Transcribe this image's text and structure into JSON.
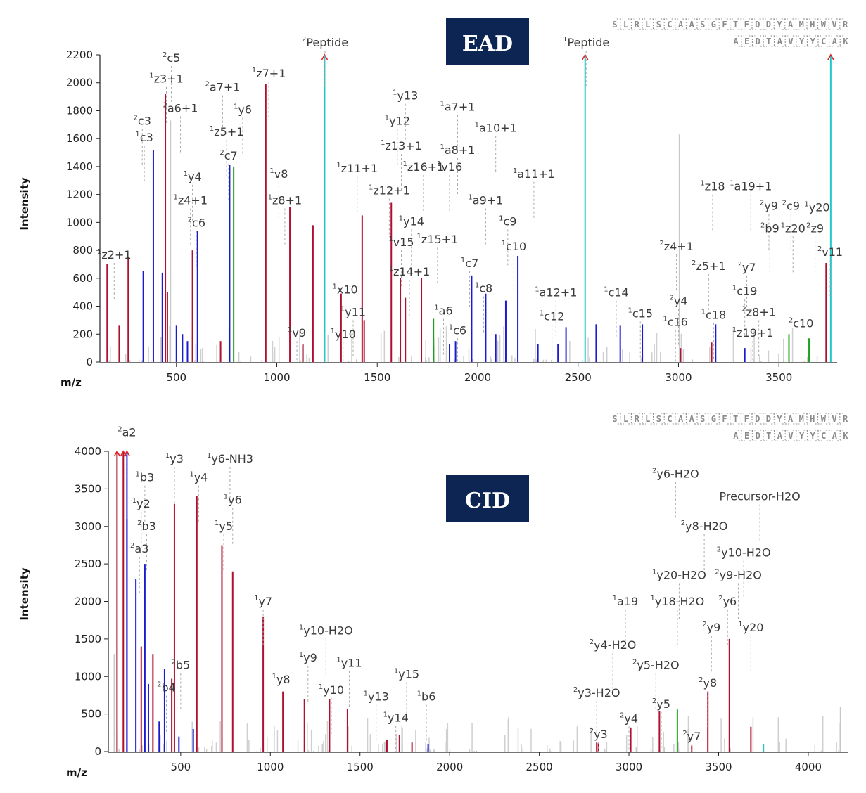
{
  "chart_data": [
    {
      "type": "bar",
      "badge": "EAD",
      "xlabel": "m/z",
      "ylabel": "Intensity",
      "xlim": [
        140,
        3790
      ],
      "ylim": [
        0,
        2200
      ],
      "xticks": [
        500,
        1000,
        1500,
        2000,
        2500,
        3000,
        3500
      ],
      "yticks": [
        0,
        200,
        400,
        600,
        800,
        1000,
        1200,
        1400,
        1600,
        1800,
        2000,
        2200
      ],
      "sequence": {
        "peptide1": "SLRLSCAASGFTFDDYAMHWVR",
        "peptide2": "AEDTAVYYCAK",
        "highlight": "C"
      },
      "colors": {
        "red": "#b01030",
        "blue": "#1a1ad0",
        "green": "#20a020",
        "cyan": "#20c8c8",
        "gray": "#c8c8c8",
        "arrow": "#e02020"
      },
      "peaks": [
        {
          "mz": 155,
          "i": 700,
          "c": "red"
        },
        {
          "mz": 215,
          "i": 260,
          "c": "red"
        },
        {
          "mz": 260,
          "i": 750,
          "c": "red"
        },
        {
          "mz": 335,
          "i": 650,
          "c": "blue"
        },
        {
          "mz": 385,
          "i": 1520,
          "c": "blue"
        },
        {
          "mz": 430,
          "i": 640,
          "c": "blue"
        },
        {
          "mz": 445,
          "i": 1920,
          "c": "red"
        },
        {
          "mz": 455,
          "i": 500,
          "c": "red"
        },
        {
          "mz": 470,
          "i": 1730,
          "c": "gray"
        },
        {
          "mz": 500,
          "i": 260,
          "c": "blue"
        },
        {
          "mz": 530,
          "i": 200,
          "c": "blue"
        },
        {
          "mz": 555,
          "i": 150,
          "c": "blue"
        },
        {
          "mz": 580,
          "i": 800,
          "c": "red"
        },
        {
          "mz": 605,
          "i": 940,
          "c": "blue"
        },
        {
          "mz": 720,
          "i": 150,
          "c": "red"
        },
        {
          "mz": 765,
          "i": 1410,
          "c": "blue"
        },
        {
          "mz": 785,
          "i": 1400,
          "c": "green"
        },
        {
          "mz": 945,
          "i": 1990,
          "c": "red"
        },
        {
          "mz": 1065,
          "i": 1110,
          "c": "red"
        },
        {
          "mz": 1130,
          "i": 130,
          "c": "red"
        },
        {
          "mz": 1180,
          "i": 980,
          "c": "red"
        },
        {
          "mz": 1238,
          "i": 2200,
          "c": "cyan",
          "arrow": true
        },
        {
          "mz": 1320,
          "i": 490,
          "c": "red"
        },
        {
          "mz": 1425,
          "i": 1050,
          "c": "red"
        },
        {
          "mz": 1435,
          "i": 300,
          "c": "red"
        },
        {
          "mz": 1570,
          "i": 1140,
          "c": "red"
        },
        {
          "mz": 1615,
          "i": 600,
          "c": "red"
        },
        {
          "mz": 1640,
          "i": 460,
          "c": "red"
        },
        {
          "mz": 1720,
          "i": 600,
          "c": "red"
        },
        {
          "mz": 1780,
          "i": 310,
          "c": "green"
        },
        {
          "mz": 1860,
          "i": 130,
          "c": "blue"
        },
        {
          "mz": 1890,
          "i": 150,
          "c": "blue"
        },
        {
          "mz": 1970,
          "i": 620,
          "c": "blue"
        },
        {
          "mz": 2040,
          "i": 490,
          "c": "blue"
        },
        {
          "mz": 2090,
          "i": 200,
          "c": "blue"
        },
        {
          "mz": 2140,
          "i": 440,
          "c": "blue"
        },
        {
          "mz": 2200,
          "i": 760,
          "c": "blue"
        },
        {
          "mz": 2300,
          "i": 130,
          "c": "blue"
        },
        {
          "mz": 2400,
          "i": 130,
          "c": "blue"
        },
        {
          "mz": 2440,
          "i": 250,
          "c": "blue"
        },
        {
          "mz": 2535,
          "i": 2200,
          "c": "cyan",
          "arrow": true
        },
        {
          "mz": 2590,
          "i": 270,
          "c": "blue"
        },
        {
          "mz": 2710,
          "i": 260,
          "c": "blue"
        },
        {
          "mz": 2820,
          "i": 270,
          "c": "blue"
        },
        {
          "mz": 3005,
          "i": 1630,
          "c": "gray"
        },
        {
          "mz": 3010,
          "i": 100,
          "c": "red"
        },
        {
          "mz": 3165,
          "i": 140,
          "c": "red"
        },
        {
          "mz": 3185,
          "i": 270,
          "c": "blue"
        },
        {
          "mz": 3330,
          "i": 100,
          "c": "blue"
        },
        {
          "mz": 3550,
          "i": 200,
          "c": "green"
        },
        {
          "mz": 3650,
          "i": 170,
          "c": "green"
        },
        {
          "mz": 3735,
          "i": 710,
          "c": "red"
        },
        {
          "mz": 3758,
          "i": 2200,
          "c": "cyan",
          "arrow": true
        }
      ],
      "labels": [
        {
          "mz": 190,
          "i": 740,
          "t": "1z2+1"
        },
        {
          "mz": 340,
          "i": 1580,
          "t": "1c3"
        },
        {
          "mz": 330,
          "i": 1700,
          "t": "2c3"
        },
        {
          "mz": 450,
          "i": 2000,
          "t": "1z3+1"
        },
        {
          "mz": 475,
          "i": 2150,
          "t": "2c5"
        },
        {
          "mz": 520,
          "i": 1790,
          "t": "2a6+1"
        },
        {
          "mz": 580,
          "i": 1300,
          "t": "1y4"
        },
        {
          "mz": 570,
          "i": 1130,
          "t": "1z4+1"
        },
        {
          "mz": 600,
          "i": 970,
          "t": "2c6"
        },
        {
          "mz": 730,
          "i": 1940,
          "t": "2a7+1"
        },
        {
          "mz": 830,
          "i": 1780,
          "t": "1y6"
        },
        {
          "mz": 750,
          "i": 1620,
          "t": "1z5+1"
        },
        {
          "mz": 760,
          "i": 1450,
          "t": "2c7"
        },
        {
          "mz": 960,
          "i": 2040,
          "t": "1z7+1"
        },
        {
          "mz": 1010,
          "i": 1320,
          "t": "1v8"
        },
        {
          "mz": 1040,
          "i": 1130,
          "t": "1z8+1"
        },
        {
          "mz": 1100,
          "i": 180,
          "t": "1v9"
        },
        {
          "mz": 1340,
          "i": 490,
          "t": "1x10"
        },
        {
          "mz": 1380,
          "i": 330,
          "t": "1y11"
        },
        {
          "mz": 1330,
          "i": 170,
          "t": "1y10"
        },
        {
          "mz": 1400,
          "i": 1360,
          "t": "1z11+1"
        },
        {
          "mz": 1560,
          "i": 1200,
          "t": "1z12+1"
        },
        {
          "mz": 1600,
          "i": 1700,
          "t": "1y12"
        },
        {
          "mz": 1640,
          "i": 1880,
          "t": "1y13"
        },
        {
          "mz": 1620,
          "i": 1520,
          "t": "1z13+1"
        },
        {
          "mz": 1730,
          "i": 1370,
          "t": "1z16+1"
        },
        {
          "mz": 1860,
          "i": 1370,
          "t": "1v16"
        },
        {
          "mz": 1670,
          "i": 980,
          "t": "1y14"
        },
        {
          "mz": 1620,
          "i": 830,
          "t": "1v15"
        },
        {
          "mz": 1800,
          "i": 850,
          "t": "1z15+1"
        },
        {
          "mz": 1660,
          "i": 620,
          "t": "1z14+1"
        },
        {
          "mz": 1900,
          "i": 1800,
          "t": "1a7+1"
        },
        {
          "mz": 1900,
          "i": 1490,
          "t": "1a8+1"
        },
        {
          "mz": 2090,
          "i": 1650,
          "t": "1a10+1"
        },
        {
          "mz": 2040,
          "i": 1130,
          "t": "1a9+1"
        },
        {
          "mz": 2150,
          "i": 980,
          "t": "1c9"
        },
        {
          "mz": 2180,
          "i": 800,
          "t": "1c10"
        },
        {
          "mz": 1960,
          "i": 680,
          "t": "1c7"
        },
        {
          "mz": 2030,
          "i": 500,
          "t": "1c8"
        },
        {
          "mz": 1830,
          "i": 340,
          "t": "1a6"
        },
        {
          "mz": 1900,
          "i": 200,
          "t": "1c6"
        },
        {
          "mz": 2280,
          "i": 1320,
          "t": "1a11+1"
        },
        {
          "mz": 2390,
          "i": 470,
          "t": "1a12+1"
        },
        {
          "mz": 2370,
          "i": 300,
          "t": "1c12"
        },
        {
          "mz": 2690,
          "i": 470,
          "t": "1c14"
        },
        {
          "mz": 2810,
          "i": 320,
          "t": "1c15"
        },
        {
          "mz": 2990,
          "i": 800,
          "t": "2z4+1"
        },
        {
          "mz": 3000,
          "i": 410,
          "t": "2y4"
        },
        {
          "mz": 2985,
          "i": 260,
          "t": "1c16"
        },
        {
          "mz": 3170,
          "i": 1230,
          "t": "1z18"
        },
        {
          "mz": 3150,
          "i": 660,
          "t": "2z5+1"
        },
        {
          "mz": 3175,
          "i": 310,
          "t": "1c18"
        },
        {
          "mz": 3360,
          "i": 1230,
          "t": "1a19+1"
        },
        {
          "mz": 3340,
          "i": 650,
          "t": "2y7"
        },
        {
          "mz": 3330,
          "i": 480,
          "t": "1c19"
        },
        {
          "mz": 3400,
          "i": 330,
          "t": "2z8+1"
        },
        {
          "mz": 3370,
          "i": 180,
          "t": "1z19+1"
        },
        {
          "mz": 3450,
          "i": 1090,
          "t": "2y9"
        },
        {
          "mz": 3455,
          "i": 930,
          "t": "2b9"
        },
        {
          "mz": 3560,
          "i": 1090,
          "t": "2c9"
        },
        {
          "mz": 3570,
          "i": 930,
          "t": "1z20"
        },
        {
          "mz": 3690,
          "i": 1080,
          "t": "1y20"
        },
        {
          "mz": 3680,
          "i": 930,
          "t": "2z9"
        },
        {
          "mz": 3755,
          "i": 760,
          "t": "2v11"
        },
        {
          "mz": 3610,
          "i": 250,
          "t": "2c10"
        },
        {
          "mz": 1240,
          "i": 2260,
          "t": "2Peptide"
        },
        {
          "mz": 2540,
          "i": 2260,
          "t": "1Peptide"
        }
      ]
    },
    {
      "type": "bar",
      "badge": "CID",
      "xlabel": "m/z",
      "ylabel": "Intensity",
      "xlim": [
        120,
        4220
      ],
      "ylim": [
        0,
        4000
      ],
      "xticks": [
        500,
        1000,
        1500,
        2000,
        2500,
        3000,
        3500,
        4000
      ],
      "yticks": [
        0,
        500,
        1000,
        1500,
        2000,
        2500,
        3000,
        3500,
        4000
      ],
      "sequence": {
        "peptide1": "SLRLSCAASGFTFDDYAMHWVR",
        "peptide2": "AEDTAVYYCAK",
        "highlight": "C"
      },
      "colors": {
        "red": "#b01030",
        "blue": "#1a1ad0",
        "green": "#20a020",
        "cyan": "#20c8c8",
        "gray": "#c8c8c8",
        "arrow": "#e02020"
      },
      "peaks": [
        {
          "mz": 130,
          "i": 1300,
          "c": "gray"
        },
        {
          "mz": 145,
          "i": 4000,
          "c": "red",
          "arrow": true
        },
        {
          "mz": 180,
          "i": 4000,
          "c": "red",
          "arrow": true
        },
        {
          "mz": 200,
          "i": 4000,
          "c": "blue",
          "arrow": true
        },
        {
          "mz": 200,
          "i": 3100,
          "c": "blue"
        },
        {
          "mz": 250,
          "i": 2300,
          "c": "blue"
        },
        {
          "mz": 280,
          "i": 1400,
          "c": "red"
        },
        {
          "mz": 300,
          "i": 2500,
          "c": "blue"
        },
        {
          "mz": 320,
          "i": 900,
          "c": "blue"
        },
        {
          "mz": 345,
          "i": 1300,
          "c": "red"
        },
        {
          "mz": 380,
          "i": 400,
          "c": "blue"
        },
        {
          "mz": 410,
          "i": 1100,
          "c": "blue"
        },
        {
          "mz": 450,
          "i": 970,
          "c": "red"
        },
        {
          "mz": 465,
          "i": 3300,
          "c": "red"
        },
        {
          "mz": 490,
          "i": 200,
          "c": "blue"
        },
        {
          "mz": 590,
          "i": 3400,
          "c": "red"
        },
        {
          "mz": 570,
          "i": 300,
          "c": "blue"
        },
        {
          "mz": 730,
          "i": 2750,
          "c": "red"
        },
        {
          "mz": 790,
          "i": 2400,
          "c": "red"
        },
        {
          "mz": 960,
          "i": 1800,
          "c": "red"
        },
        {
          "mz": 1070,
          "i": 800,
          "c": "red"
        },
        {
          "mz": 1190,
          "i": 700,
          "c": "red"
        },
        {
          "mz": 1330,
          "i": 700,
          "c": "red"
        },
        {
          "mz": 1430,
          "i": 570,
          "c": "red"
        },
        {
          "mz": 1650,
          "i": 160,
          "c": "red"
        },
        {
          "mz": 1720,
          "i": 220,
          "c": "red"
        },
        {
          "mz": 1790,
          "i": 120,
          "c": "red"
        },
        {
          "mz": 1880,
          "i": 100,
          "c": "blue"
        },
        {
          "mz": 2820,
          "i": 120,
          "c": "red"
        },
        {
          "mz": 2830,
          "i": 110,
          "c": "red"
        },
        {
          "mz": 3010,
          "i": 320,
          "c": "red"
        },
        {
          "mz": 3170,
          "i": 540,
          "c": "red"
        },
        {
          "mz": 3270,
          "i": 560,
          "c": "green"
        },
        {
          "mz": 3350,
          "i": 80,
          "c": "red"
        },
        {
          "mz": 3440,
          "i": 800,
          "c": "red"
        },
        {
          "mz": 3560,
          "i": 1500,
          "c": "red"
        },
        {
          "mz": 3680,
          "i": 330,
          "c": "red"
        },
        {
          "mz": 3750,
          "i": 100,
          "c": "cyan"
        },
        {
          "mz": 4180,
          "i": 600,
          "c": "gray"
        }
      ],
      "labels": [
        {
          "mz": 200,
          "i": 4200,
          "t": "2a2"
        },
        {
          "mz": 300,
          "i": 3600,
          "t": "1b3"
        },
        {
          "mz": 280,
          "i": 3250,
          "t": "1y2"
        },
        {
          "mz": 310,
          "i": 2950,
          "t": "2b3"
        },
        {
          "mz": 270,
          "i": 2650,
          "t": "2a3"
        },
        {
          "mz": 465,
          "i": 3850,
          "t": "1y3"
        },
        {
          "mz": 600,
          "i": 3600,
          "t": "1y4"
        },
        {
          "mz": 775,
          "i": 3850,
          "t": "1y6-NH3"
        },
        {
          "mz": 790,
          "i": 3300,
          "t": "1y6"
        },
        {
          "mz": 740,
          "i": 2950,
          "t": "1y5"
        },
        {
          "mz": 500,
          "i": 1100,
          "t": "2b5"
        },
        {
          "mz": 420,
          "i": 800,
          "t": "2b4"
        },
        {
          "mz": 960,
          "i": 1950,
          "t": "1y7"
        },
        {
          "mz": 1310,
          "i": 1560,
          "t": "1y10-H2O"
        },
        {
          "mz": 1210,
          "i": 1200,
          "t": "1y9"
        },
        {
          "mz": 1440,
          "i": 1130,
          "t": "1y11"
        },
        {
          "mz": 1060,
          "i": 910,
          "t": "1y8"
        },
        {
          "mz": 1340,
          "i": 770,
          "t": "1y10"
        },
        {
          "mz": 1760,
          "i": 980,
          "t": "1y15"
        },
        {
          "mz": 1870,
          "i": 680,
          "t": "1b6"
        },
        {
          "mz": 1590,
          "i": 680,
          "t": "1y13"
        },
        {
          "mz": 1700,
          "i": 400,
          "t": "1y14"
        },
        {
          "mz": 3260,
          "i": 3650,
          "t": "2y6-H2O"
        },
        {
          "mz": 3730,
          "i": 3350,
          "t": "Precursor-H2O"
        },
        {
          "mz": 3420,
          "i": 2950,
          "t": "2y8-H2O"
        },
        {
          "mz": 3640,
          "i": 2600,
          "t": "2y10-H2O"
        },
        {
          "mz": 3280,
          "i": 2300,
          "t": "1y20-H2O"
        },
        {
          "mz": 3610,
          "i": 2300,
          "t": "2y9-H2O"
        },
        {
          "mz": 2980,
          "i": 1950,
          "t": "1a19"
        },
        {
          "mz": 3270,
          "i": 1950,
          "t": "1y18-H2O"
        },
        {
          "mz": 3550,
          "i": 1950,
          "t": "2y6"
        },
        {
          "mz": 3460,
          "i": 1600,
          "t": "2y9"
        },
        {
          "mz": 3680,
          "i": 1600,
          "t": "1y20"
        },
        {
          "mz": 2910,
          "i": 1370,
          "t": "2y4-H2O"
        },
        {
          "mz": 3150,
          "i": 1100,
          "t": "2y5-H2O"
        },
        {
          "mz": 2820,
          "i": 730,
          "t": "2y3-H2O"
        },
        {
          "mz": 3440,
          "i": 860,
          "t": "2y8"
        },
        {
          "mz": 3180,
          "i": 580,
          "t": "2y5"
        },
        {
          "mz": 3000,
          "i": 390,
          "t": "2y4"
        },
        {
          "mz": 2830,
          "i": 180,
          "t": "2y3"
        },
        {
          "mz": 3350,
          "i": 150,
          "t": "2y7"
        }
      ]
    }
  ]
}
